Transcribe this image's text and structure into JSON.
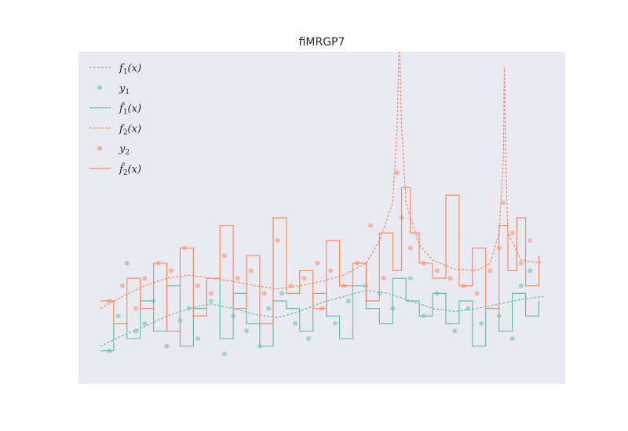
{
  "chart_data": {
    "type": "line",
    "title": "fiMRGP7",
    "xlabel": "",
    "ylabel": "",
    "xlim": [
      0,
      1
    ],
    "ylim": [
      -0.2,
      2.0
    ],
    "grid": false,
    "legend_position": "top-left",
    "background": "#eaeaf2",
    "colors": {
      "series1": "#66c2a5",
      "series2": "#fc8d62"
    },
    "legend": [
      {
        "label": "f1(x)",
        "base": "f",
        "hat": false,
        "sub": "1",
        "arg": "(x)",
        "style": "dotted-line",
        "color": "#66c2a5"
      },
      {
        "label": "y1",
        "base": "y",
        "hat": false,
        "sub": "1",
        "arg": "",
        "style": "marker",
        "color": "#66c2a5"
      },
      {
        "label": "f̂1(x)",
        "base": "f",
        "hat": true,
        "sub": "1",
        "arg": "(x)",
        "style": "solid-line",
        "color": "#66c2a5"
      },
      {
        "label": "f2(x)",
        "base": "f",
        "hat": false,
        "sub": "2",
        "arg": "(x)",
        "style": "dotted-line",
        "color": "#fc8d62"
      },
      {
        "label": "y2",
        "base": "y",
        "hat": false,
        "sub": "2",
        "arg": "",
        "style": "marker",
        "color": "#fc8d62"
      },
      {
        "label": "f̂2(x)",
        "base": "f",
        "hat": true,
        "sub": "2",
        "arg": "(x)",
        "style": "solid-line",
        "color": "#fc8d62"
      }
    ],
    "series": [
      {
        "name": "f1(x)",
        "kind": "true",
        "x": [
          0.0,
          0.05,
          0.1,
          0.15,
          0.2,
          0.25,
          0.3,
          0.35,
          0.4,
          0.45,
          0.5,
          0.55,
          0.6,
          0.65,
          0.7,
          0.75,
          0.8,
          0.85,
          0.9,
          0.95,
          1.0
        ],
        "y": [
          0.05,
          0.12,
          0.18,
          0.25,
          0.3,
          0.33,
          0.3,
          0.26,
          0.24,
          0.28,
          0.34,
          0.38,
          0.42,
          0.4,
          0.35,
          0.3,
          0.28,
          0.3,
          0.33,
          0.36,
          0.38
        ]
      },
      {
        "name": "y1",
        "kind": "observed",
        "x": [
          0.02,
          0.04,
          0.06,
          0.08,
          0.1,
          0.12,
          0.15,
          0.18,
          0.2,
          0.22,
          0.25,
          0.28,
          0.3,
          0.33,
          0.36,
          0.38,
          0.41,
          0.44,
          0.47,
          0.5,
          0.53,
          0.56,
          0.6,
          0.63,
          0.66,
          0.7,
          0.73,
          0.76,
          0.8,
          0.83,
          0.86,
          0.9,
          0.93,
          0.95,
          0.97
        ],
        "y": [
          0.02,
          0.25,
          0.6,
          0.15,
          0.2,
          0.35,
          0.05,
          0.22,
          0.3,
          0.1,
          0.35,
          0.0,
          0.25,
          0.15,
          0.05,
          0.3,
          0.4,
          0.2,
          0.1,
          0.3,
          0.2,
          0.35,
          0.45,
          0.4,
          0.3,
          0.5,
          0.25,
          0.4,
          0.15,
          0.3,
          0.2,
          0.25,
          0.1,
          0.45,
          0.55
        ]
      },
      {
        "name": "f̂1(x)",
        "kind": "predicted",
        "x": [
          0.0,
          0.03,
          0.06,
          0.09,
          0.12,
          0.15,
          0.18,
          0.21,
          0.24,
          0.27,
          0.3,
          0.33,
          0.36,
          0.39,
          0.42,
          0.45,
          0.48,
          0.51,
          0.54,
          0.57,
          0.6,
          0.63,
          0.66,
          0.69,
          0.72,
          0.75,
          0.78,
          0.81,
          0.84,
          0.87,
          0.9,
          0.93,
          0.96,
          0.99
        ],
        "y": [
          0.02,
          0.2,
          0.1,
          0.35,
          0.15,
          0.45,
          0.05,
          0.3,
          0.5,
          0.1,
          0.4,
          0.2,
          0.05,
          0.35,
          0.3,
          0.15,
          0.4,
          0.25,
          0.1,
          0.45,
          0.3,
          0.2,
          0.5,
          0.35,
          0.25,
          0.4,
          0.2,
          0.35,
          0.05,
          0.3,
          0.15,
          0.4,
          0.25,
          0.35
        ]
      },
      {
        "name": "f2(x)",
        "kind": "true",
        "x": [
          0.0,
          0.05,
          0.1,
          0.15,
          0.2,
          0.25,
          0.3,
          0.35,
          0.4,
          0.45,
          0.5,
          0.55,
          0.6,
          0.63,
          0.66,
          0.67,
          0.675,
          0.68,
          0.69,
          0.72,
          0.75,
          0.8,
          0.85,
          0.88,
          0.9,
          0.91,
          0.912,
          0.915,
          0.92,
          0.95,
          1.0
        ],
        "y": [
          0.3,
          0.38,
          0.45,
          0.5,
          0.52,
          0.5,
          0.48,
          0.45,
          0.43,
          0.45,
          0.48,
          0.52,
          0.6,
          0.75,
          1.0,
          1.5,
          2.1,
          1.5,
          1.0,
          0.72,
          0.62,
          0.56,
          0.55,
          0.6,
          0.8,
          1.3,
          1.9,
          1.3,
          0.8,
          0.62,
          0.6
        ]
      },
      {
        "name": "y2",
        "kind": "observed",
        "x": [
          0.02,
          0.05,
          0.08,
          0.1,
          0.13,
          0.16,
          0.19,
          0.22,
          0.25,
          0.28,
          0.31,
          0.34,
          0.37,
          0.4,
          0.43,
          0.46,
          0.49,
          0.52,
          0.55,
          0.58,
          0.61,
          0.64,
          0.67,
          0.68,
          0.7,
          0.73,
          0.76,
          0.79,
          0.82,
          0.85,
          0.88,
          0.9,
          0.91,
          0.93,
          0.95,
          0.97
        ],
        "y": [
          0.35,
          0.45,
          0.3,
          0.5,
          0.6,
          0.55,
          0.7,
          0.45,
          0.4,
          0.65,
          0.5,
          0.55,
          0.4,
          0.75,
          0.45,
          0.5,
          0.6,
          0.55,
          0.45,
          0.6,
          0.85,
          0.5,
          1.2,
          0.9,
          0.7,
          0.6,
          0.55,
          0.5,
          0.45,
          0.4,
          0.55,
          0.7,
          1.0,
          0.8,
          0.6,
          0.75
        ]
      },
      {
        "name": "f̂2(x)",
        "kind": "predicted",
        "x": [
          0.0,
          0.03,
          0.06,
          0.09,
          0.12,
          0.15,
          0.18,
          0.21,
          0.24,
          0.27,
          0.3,
          0.33,
          0.36,
          0.39,
          0.42,
          0.45,
          0.48,
          0.51,
          0.54,
          0.57,
          0.6,
          0.63,
          0.66,
          0.68,
          0.7,
          0.72,
          0.75,
          0.78,
          0.81,
          0.84,
          0.87,
          0.9,
          0.92,
          0.94,
          0.96,
          0.99
        ],
        "y": [
          0.35,
          0.2,
          0.5,
          0.3,
          0.6,
          0.15,
          0.7,
          0.25,
          0.5,
          0.85,
          0.3,
          0.65,
          0.2,
          0.9,
          0.4,
          0.55,
          0.3,
          0.75,
          0.45,
          0.6,
          0.35,
          0.8,
          0.55,
          1.1,
          0.8,
          0.6,
          0.5,
          1.05,
          0.45,
          0.7,
          0.3,
          0.85,
          0.55,
          0.9,
          0.45,
          0.65
        ]
      }
    ]
  }
}
